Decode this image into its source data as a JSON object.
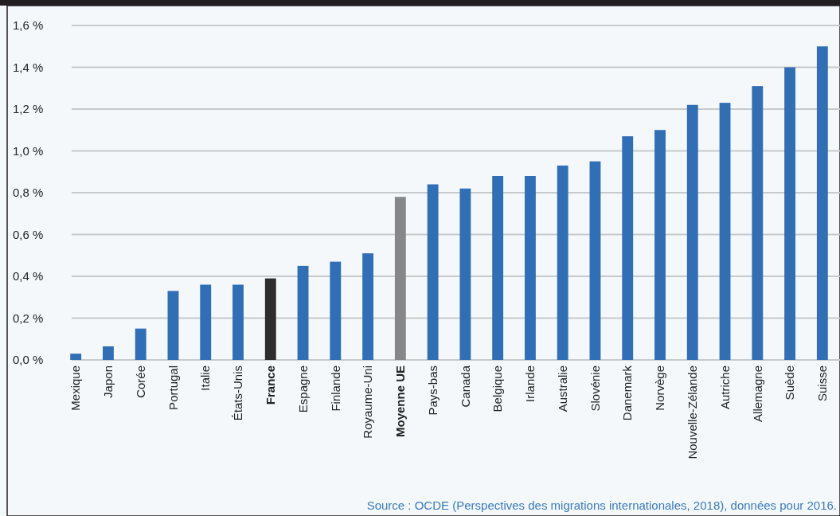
{
  "chart_data": {
    "type": "bar",
    "categories": [
      "Mexique",
      "Japon",
      "Corée",
      "Portugal",
      "Italie",
      "États-Unis",
      "France",
      "Espagne",
      "Finlande",
      "Royaume-Uni",
      "Moyenne UE",
      "Pays-bas",
      "Canada",
      "Belgique",
      "Irlande",
      "Australie",
      "Slovénie",
      "Danemark",
      "Norvège",
      "Nouvelle-Zélande",
      "Autriche",
      "Allemagne",
      "Suède",
      "Suisse"
    ],
    "values": [
      0.03,
      0.065,
      0.15,
      0.33,
      0.36,
      0.36,
      0.39,
      0.45,
      0.47,
      0.51,
      0.78,
      0.84,
      0.82,
      0.88,
      0.88,
      0.93,
      0.95,
      1.07,
      1.1,
      1.22,
      1.23,
      1.31,
      1.4,
      1.5
    ],
    "colors": [
      "#306eb5",
      "#306eb5",
      "#306eb5",
      "#306eb5",
      "#306eb5",
      "#306eb5",
      "#2e2c2d",
      "#306eb5",
      "#306eb5",
      "#306eb5",
      "#87878a",
      "#306eb5",
      "#306eb5",
      "#306eb5",
      "#306eb5",
      "#306eb5",
      "#306eb5",
      "#306eb5",
      "#306eb5",
      "#306eb5",
      "#306eb5",
      "#306eb5",
      "#306eb5",
      "#306eb5"
    ],
    "ylim": [
      0,
      1.6
    ],
    "yticks": [
      {
        "value": 0,
        "label": "0,0 %"
      },
      {
        "value": 0.2,
        "label": "0,2 %"
      },
      {
        "value": 0.4,
        "label": "0,4 %"
      },
      {
        "value": 0.6,
        "label": "0,6 %"
      },
      {
        "value": 0.8,
        "label": "0,8 %"
      },
      {
        "value": 1.0,
        "label": "1,0 %"
      },
      {
        "value": 1.2,
        "label": "1,2 %"
      },
      {
        "value": 1.4,
        "label": "1,4 %"
      },
      {
        "value": 1.6,
        "label": "1,6 %"
      }
    ],
    "grid": "y",
    "annotations": [
      "Source : OCDE (Perspectives des migrations internationales, 2018), données pour 2016."
    ]
  }
}
